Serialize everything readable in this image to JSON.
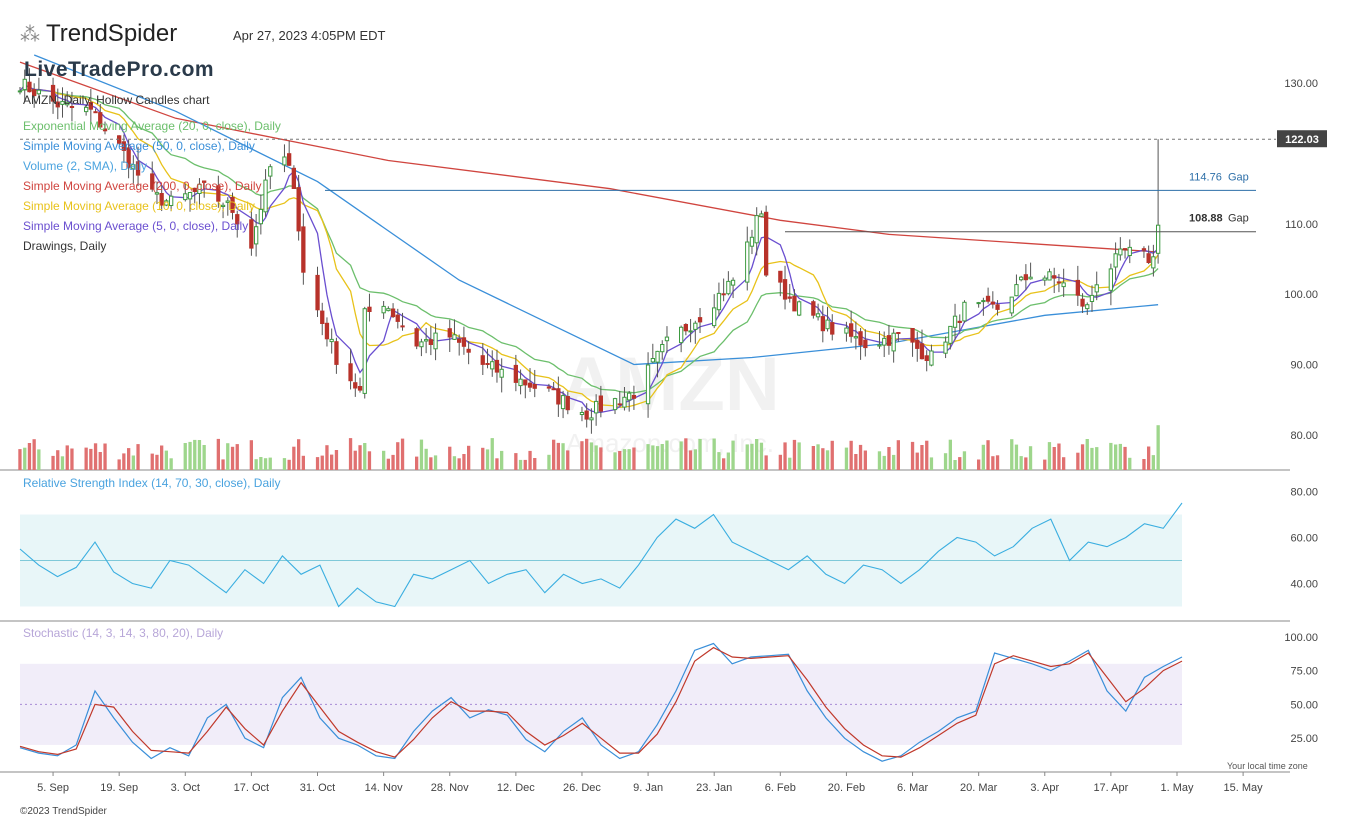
{
  "header": {
    "brand": "TrendSpider",
    "timestamp": "Apr 27, 2023 4:05PM EDT",
    "watermark_site": "LiveTradePro.com",
    "symbol_line": "AMZN, Daily, Hollow Candles chart"
  },
  "legend": [
    {
      "label": "Exponential Moving Average (20, 0, close), Daily",
      "color": "#6cbf6c"
    },
    {
      "label": "Simple Moving Average (50, 0, close), Daily",
      "color": "#3a8fd9"
    },
    {
      "label": "Volume (2, SMA), Daily",
      "color": "#4aa3df"
    },
    {
      "label": "Simple Moving Average (200, 0, close), Daily",
      "color": "#d0453f"
    },
    {
      "label": "Simple Moving Average (10, 0, close), Daily",
      "color": "#e8c21a"
    },
    {
      "label": "Simple Moving Average (5, 0, close), Daily",
      "color": "#6a4fd0"
    },
    {
      "label": "Drawings, Daily",
      "color": "#333333"
    }
  ],
  "price_labels": {
    "last": "122.03",
    "gap1": "114.76",
    "gap2": "108.88",
    "gap_word": "Gap"
  },
  "rsi_title": "Relative Strength Index (14, 70, 30, close), Daily",
  "stoch_title": "Stochastic (14, 3, 14, 3, 80, 20), Daily",
  "footer": "©2023 TrendSpider",
  "tz_note": "Your local time zone",
  "chart_data": [
    {
      "type": "candlestick",
      "title": "AMZN, Daily, Hollow Candles chart",
      "x_ticks": [
        "5. Sep",
        "19. Sep",
        "3. Oct",
        "17. Oct",
        "31. Oct",
        "14. Nov",
        "28. Nov",
        "12. Dec",
        "26. Dec",
        "9. Jan",
        "23. Jan",
        "6. Feb",
        "20. Feb",
        "6. Mar",
        "20. Mar",
        "3. Apr",
        "17. Apr",
        "1. May",
        "15. May"
      ],
      "y_ticks": [
        80,
        90,
        100,
        110,
        130
      ],
      "y_tick_labels": [
        "80.00",
        "90.00",
        "100.00",
        "110.00",
        "130.00"
      ],
      "ylim": [
        75,
        135
      ],
      "x_start_date": "2022-08-29",
      "close_anchors": [
        {
          "date": "2022-08-29",
          "close": 130
        },
        {
          "date": "2022-09-06",
          "close": 127
        },
        {
          "date": "2022-09-13",
          "close": 126
        },
        {
          "date": "2022-09-19",
          "close": 121
        },
        {
          "date": "2022-09-26",
          "close": 114
        },
        {
          "date": "2022-09-30",
          "close": 113
        },
        {
          "date": "2022-10-07",
          "close": 115
        },
        {
          "date": "2022-10-13",
          "close": 112
        },
        {
          "date": "2022-10-17",
          "close": 107
        },
        {
          "date": "2022-10-21",
          "close": 118
        },
        {
          "date": "2022-10-24",
          "close": 119
        },
        {
          "date": "2022-10-26",
          "close": 116
        },
        {
          "date": "2022-10-28",
          "close": 103
        },
        {
          "date": "2022-11-01",
          "close": 96
        },
        {
          "date": "2022-11-04",
          "close": 91
        },
        {
          "date": "2022-11-09",
          "close": 86
        },
        {
          "date": "2022-11-10",
          "close": 97
        },
        {
          "date": "2022-11-14",
          "close": 99
        },
        {
          "date": "2022-11-21",
          "close": 93
        },
        {
          "date": "2022-11-28",
          "close": 94
        },
        {
          "date": "2022-12-05",
          "close": 90
        },
        {
          "date": "2022-12-12",
          "close": 88
        },
        {
          "date": "2022-12-19",
          "close": 86
        },
        {
          "date": "2022-12-27",
          "close": 83
        },
        {
          "date": "2022-12-30",
          "close": 84
        },
        {
          "date": "2023-01-06",
          "close": 86
        },
        {
          "date": "2023-01-13",
          "close": 93
        },
        {
          "date": "2023-01-20",
          "close": 97
        },
        {
          "date": "2023-01-27",
          "close": 102
        },
        {
          "date": "2023-02-02",
          "close": 112
        },
        {
          "date": "2023-02-03",
          "close": 103
        },
        {
          "date": "2023-02-10",
          "close": 98
        },
        {
          "date": "2023-02-17",
          "close": 95
        },
        {
          "date": "2023-02-24",
          "close": 93
        },
        {
          "date": "2023-03-03",
          "close": 94
        },
        {
          "date": "2023-03-10",
          "close": 91
        },
        {
          "date": "2023-03-17",
          "close": 98
        },
        {
          "date": "2023-03-24",
          "close": 98
        },
        {
          "date": "2023-03-31",
          "close": 103
        },
        {
          "date": "2023-04-06",
          "close": 102
        },
        {
          "date": "2023-04-12",
          "close": 98
        },
        {
          "date": "2023-04-14",
          "close": 102
        },
        {
          "date": "2023-04-20",
          "close": 106
        },
        {
          "date": "2023-04-26",
          "close": 105
        },
        {
          "date": "2023-04-27",
          "close": 109.8
        }
      ],
      "last_candle_high": 122.03,
      "gap_lines": [
        114.76,
        108.88
      ],
      "indicators": {
        "sma200": [
          {
            "date": "2022-08-29",
            "v": 133
          },
          {
            "date": "2022-10-01",
            "v": 125
          },
          {
            "date": "2022-11-15",
            "v": 119
          },
          {
            "date": "2023-01-01",
            "v": 115
          },
          {
            "date": "2023-02-06",
            "v": 110.5
          },
          {
            "date": "2023-03-01",
            "v": 108.5
          },
          {
            "date": "2023-04-27",
            "v": 106
          }
        ],
        "sma50": [
          {
            "date": "2022-09-01",
            "v": 134
          },
          {
            "date": "2022-10-01",
            "v": 126
          },
          {
            "date": "2022-10-31",
            "v": 116
          },
          {
            "date": "2022-11-30",
            "v": 102
          },
          {
            "date": "2023-01-06",
            "v": 90
          },
          {
            "date": "2023-01-31",
            "v": 91
          },
          {
            "date": "2023-03-01",
            "v": 93
          },
          {
            "date": "2023-04-03",
            "v": 97
          },
          {
            "date": "2023-04-27",
            "v": 98.5
          }
        ]
      }
    },
    {
      "type": "bar",
      "title": "Volume (2, SMA), Daily",
      "colors": {
        "up": "#9ed68c",
        "down": "#e07070"
      }
    },
    {
      "type": "line",
      "title": "Relative Strength Index (14, 70, 30, close), Daily",
      "y_ticks": [
        "40.00",
        "60.00",
        "80.00"
      ],
      "ylim": [
        25,
        85
      ],
      "band": [
        30,
        70
      ],
      "series": [
        {
          "values": [
            55,
            48,
            43,
            47,
            58,
            45,
            40,
            38,
            50,
            48,
            42,
            36,
            46,
            40,
            52,
            44,
            48,
            30,
            38,
            32,
            30,
            44,
            42,
            46,
            50,
            40,
            44,
            46,
            36,
            44,
            40,
            42,
            38,
            48,
            60,
            68,
            64,
            70,
            58,
            54,
            50,
            46,
            52,
            44,
            40,
            48,
            46,
            40,
            46,
            54,
            60,
            58,
            52,
            56,
            64,
            68,
            50,
            58,
            56,
            60,
            66,
            64,
            75
          ]
        }
      ]
    },
    {
      "type": "line",
      "title": "Stochastic (14, 3, 14, 3, 80, 20), Daily",
      "y_ticks": [
        "25.00",
        "50.00",
        "75.00",
        "100.00"
      ],
      "ylim": [
        0,
        105
      ],
      "band": [
        20,
        80
      ],
      "series": [
        {
          "values": [
            18,
            14,
            12,
            20,
            60,
            40,
            22,
            10,
            18,
            12,
            40,
            50,
            25,
            18,
            55,
            70,
            40,
            25,
            20,
            12,
            10,
            30,
            45,
            55,
            40,
            46,
            42,
            24,
            15,
            30,
            40,
            20,
            10,
            15,
            35,
            60,
            90,
            95,
            80,
            85,
            86,
            87,
            60,
            40,
            25,
            15,
            8,
            12,
            22,
            30,
            40,
            45,
            88,
            84,
            80,
            75,
            82,
            90,
            60,
            45,
            70,
            78,
            85
          ]
        },
        {
          "values": [
            19,
            15,
            13,
            17,
            50,
            48,
            30,
            16,
            15,
            14,
            30,
            48,
            32,
            20,
            45,
            66,
            48,
            30,
            22,
            15,
            11,
            24,
            40,
            52,
            45,
            45,
            44,
            30,
            20,
            27,
            36,
            25,
            14,
            14,
            28,
            52,
            82,
            92,
            85,
            84,
            85,
            86,
            68,
            48,
            32,
            20,
            12,
            11,
            18,
            27,
            36,
            42,
            80,
            86,
            82,
            78,
            80,
            88,
            70,
            52,
            62,
            75,
            82
          ]
        }
      ]
    }
  ]
}
